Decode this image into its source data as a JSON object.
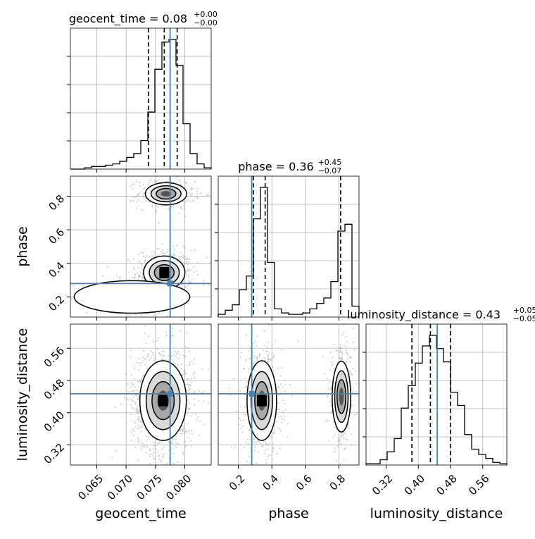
{
  "chart_data": {
    "type": "corner",
    "parameters": [
      "geocent_time",
      "phase",
      "luminosity_distance"
    ],
    "truths": {
      "geocent_time": 0.0775,
      "phase": 0.28,
      "luminosity_distance": 0.447
    },
    "truth_color": "#4682b4",
    "grid": true,
    "titles": [
      {
        "param": "geocent_time",
        "text": "geocent_time = 0.08",
        "plus": "+0.00",
        "minus": "−0.00"
      },
      {
        "param": "phase",
        "text": "phase = 0.36",
        "plus": "+0.45",
        "minus": "−0.07"
      },
      {
        "param": "luminosity_distance",
        "text": "luminosity_distance = 0.43",
        "plus": "+0.05",
        "minus": "−0.05"
      }
    ],
    "axes": {
      "geocent_time": {
        "label": "geocent_time",
        "range": [
          0.0605,
          0.0845
        ],
        "ticks": [
          0.065,
          0.07,
          0.075,
          0.08
        ],
        "tick_labels": [
          "0.065",
          "0.070",
          "0.075",
          "0.080"
        ]
      },
      "phase": {
        "label": "phase",
        "range": [
          0.08,
          0.92
        ],
        "ticks": [
          0.2,
          0.4,
          0.6,
          0.8
        ],
        "tick_labels": [
          "0.2",
          "0.4",
          "0.6",
          "0.8"
        ]
      },
      "luminosity_distance": {
        "label": "luminosity_distance",
        "range": [
          0.27,
          0.62
        ],
        "ticks": [
          0.32,
          0.4,
          0.48,
          0.56
        ],
        "tick_labels": [
          "0.32",
          "0.40",
          "0.48",
          "0.56"
        ]
      }
    },
    "marginals": [
      {
        "param": "geocent_time",
        "quantiles": [
          0.0738,
          0.0765,
          0.0787
        ],
        "bin_edges": [
          0.0605,
          0.0617,
          0.0629,
          0.0641,
          0.0653,
          0.0665,
          0.0677,
          0.0689,
          0.0701,
          0.0713,
          0.0725,
          0.0737,
          0.0749,
          0.0761,
          0.0773,
          0.0785,
          0.0797,
          0.0809,
          0.0821,
          0.0833,
          0.0845
        ],
        "counts": [
          0,
          0,
          0.01,
          0.02,
          0.02,
          0.03,
          0.04,
          0.06,
          0.09,
          0.12,
          0.22,
          0.44,
          0.77,
          0.98,
          1.0,
          0.8,
          0.35,
          0.12,
          0.04,
          0.01
        ]
      },
      {
        "param": "phase",
        "quantiles": [
          0.29,
          0.36,
          0.81
        ],
        "bin_edges": [
          0.08,
          0.122,
          0.164,
          0.206,
          0.248,
          0.29,
          0.332,
          0.374,
          0.416,
          0.458,
          0.5,
          0.542,
          0.584,
          0.626,
          0.668,
          0.71,
          0.752,
          0.794,
          0.836,
          0.878,
          0.92
        ],
        "counts": [
          0.02,
          0.05,
          0.09,
          0.2,
          0.3,
          0.72,
          0.95,
          0.4,
          0.06,
          0.03,
          0.02,
          0.02,
          0.03,
          0.06,
          0.1,
          0.14,
          0.26,
          0.63,
          0.68,
          0.08
        ]
      },
      {
        "param": "luminosity_distance",
        "quantiles": [
          0.384,
          0.43,
          0.48
        ],
        "bin_edges": [
          0.27,
          0.2875,
          0.305,
          0.3225,
          0.34,
          0.3575,
          0.375,
          0.3925,
          0.41,
          0.4275,
          0.445,
          0.4625,
          0.48,
          0.4975,
          0.515,
          0.5325,
          0.55,
          0.5675,
          0.585,
          0.6025,
          0.62
        ],
        "counts": [
          0.01,
          0.01,
          0.04,
          0.1,
          0.2,
          0.43,
          0.6,
          0.77,
          0.9,
          0.98,
          0.88,
          0.78,
          0.55,
          0.45,
          0.23,
          0.12,
          0.08,
          0.05,
          0.02,
          0.01
        ]
      }
    ],
    "joint": [
      {
        "x": "geocent_time",
        "y": "phase",
        "blobs": [
          {
            "cx": 0.0765,
            "cy": 0.345,
            "sx": 0.0016,
            "sy": 0.045,
            "w": 1.0
          },
          {
            "cx": 0.0768,
            "cy": 0.815,
            "sx": 0.0016,
            "sy": 0.03,
            "w": 0.55
          },
          {
            "cx": 0.071,
            "cy": 0.2,
            "sx": 0.0028,
            "sy": 0.04,
            "w": 0.18
          }
        ]
      },
      {
        "x": "geocent_time",
        "y": "luminosity_distance",
        "blobs": [
          {
            "cx": 0.0763,
            "cy": 0.43,
            "sx": 0.0018,
            "sy": 0.045,
            "w": 1.0
          }
        ]
      },
      {
        "x": "phase",
        "y": "luminosity_distance",
        "blobs": [
          {
            "cx": 0.34,
            "cy": 0.43,
            "sx": 0.04,
            "sy": 0.045,
            "w": 1.0
          },
          {
            "cx": 0.815,
            "cy": 0.44,
            "sx": 0.025,
            "sy": 0.04,
            "w": 0.55
          }
        ]
      }
    ]
  }
}
